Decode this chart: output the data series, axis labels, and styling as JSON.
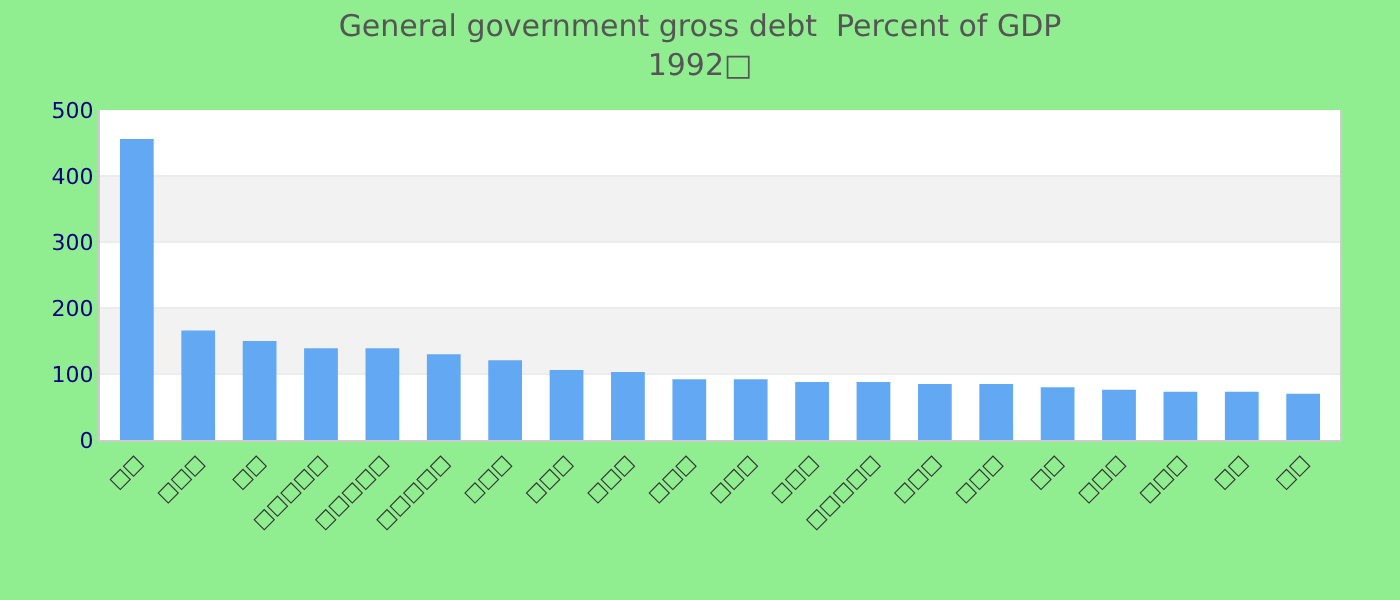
{
  "chart_data": {
    "type": "bar",
    "title": "General government gross debt  Percent of GDP",
    "subtitle": "1992□",
    "categories": [
      "□□",
      "□□□",
      "□□",
      "□□□□□",
      "□□□□□",
      "□□□□□",
      "□□□",
      "□□□",
      "□□□",
      "□□□",
      "□□□",
      "□□□",
      "□□□□□",
      "□□□",
      "□□□",
      "□□",
      "□□□",
      "□□□",
      "□□",
      "□□"
    ],
    "values": [
      456,
      166,
      150,
      139,
      139,
      130,
      121,
      106,
      103,
      92,
      92,
      88,
      88,
      85,
      85,
      80,
      76,
      73,
      73,
      70
    ],
    "color": "#63a8f3",
    "ylim": [
      0,
      500
    ],
    "yticks": [
      0,
      100,
      200,
      300,
      400,
      500
    ],
    "grid": true,
    "legend": false
  }
}
